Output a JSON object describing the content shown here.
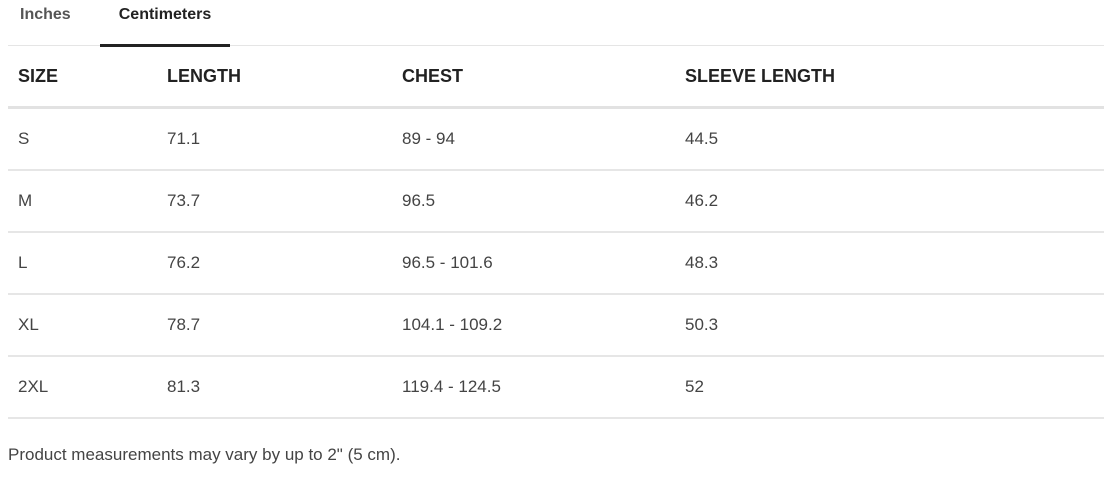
{
  "tabs": [
    {
      "label": "Inches",
      "active": false
    },
    {
      "label": "Centimeters",
      "active": true
    }
  ],
  "table": {
    "headers": [
      "SIZE",
      "LENGTH",
      "CHEST",
      "SLEEVE LENGTH"
    ],
    "rows": [
      [
        "S",
        "71.1",
        "89 - 94",
        "44.5"
      ],
      [
        "M",
        "73.7",
        "96.5",
        "46.2"
      ],
      [
        "L",
        "76.2",
        "96.5 - 101.6",
        "48.3"
      ],
      [
        "XL",
        "78.7",
        "104.1 - 109.2",
        "50.3"
      ],
      [
        "2XL",
        "81.3",
        "119.4 - 124.5",
        "52"
      ]
    ]
  },
  "note": "Product measurements may vary by up to 2\" (5 cm)."
}
